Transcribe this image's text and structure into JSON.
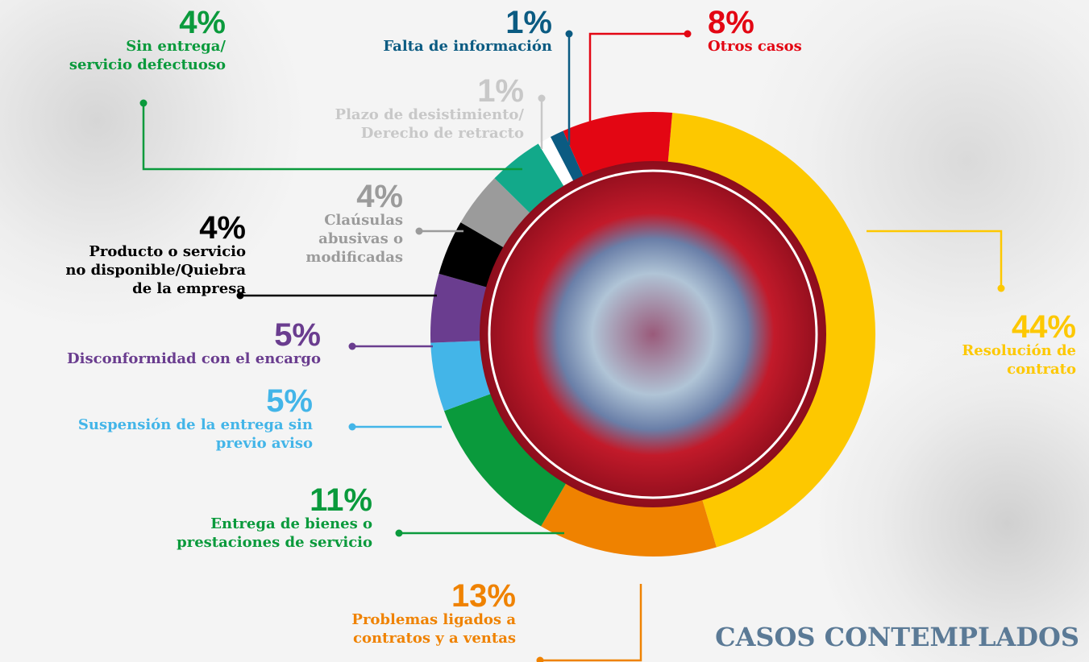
{
  "chart_data": {
    "type": "donut",
    "title": "CASOS CONTEMPLADOS",
    "categories": [
      "Resolución de\ncontrato",
      "Problemas ligados a\ncontratos y a ventas",
      "Entrega de bienes o\nprestaciones de servicio",
      "Suspensión de la entrega sin\nprevio aviso",
      "Disconformidad con el encargo",
      "Producto o servicio\nno disponible/Quiebra\nde la empresa",
      "Claúsulas\nabusivas o\nmodificadas",
      "Sin entrega/\nservicio defectuoso",
      "Plazo de desistimiento/\nDerecho de retracto",
      "Falta de información",
      "Otros casos"
    ],
    "values": [
      44,
      13,
      11,
      5,
      5,
      4,
      4,
      4,
      1,
      1,
      8
    ],
    "value_labels": [
      "44%",
      "13%",
      "11%",
      "5%",
      "5%",
      "4%",
      "4%",
      "4%",
      "1%",
      "1%",
      "8%"
    ],
    "colors": [
      "#fdc800",
      "#ef8200",
      "#0a9a3c",
      "#43b5e8",
      "#6a3d8f",
      "#000000",
      "#9b9b9b",
      "#12a98a",
      "#ffffff",
      "#0b5b82",
      "#e30613"
    ],
    "label_colors": [
      "#fdc800",
      "#ef8200",
      "#0a9a3c",
      "#43b5e8",
      "#6a3d8f",
      "#000000",
      "#9b9b9b",
      "#0a9a3c",
      "#c8c8c8",
      "#0b5b82",
      "#e30613"
    ]
  }
}
